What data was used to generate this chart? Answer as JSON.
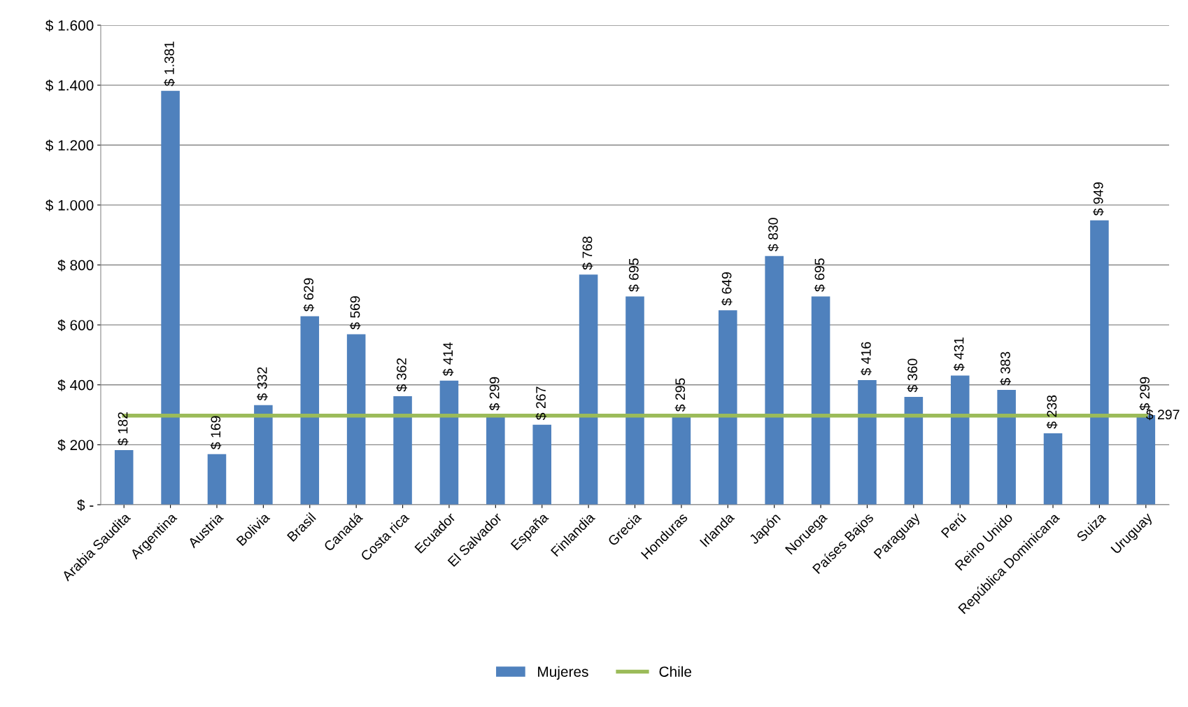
{
  "chart_data": {
    "type": "bar",
    "categories": [
      "Arabia Saudita",
      "Argentina",
      "Austria",
      "Bolivia",
      "Brasil",
      "Canadá",
      "Costa rica",
      "Ecuador",
      "El Salvador",
      "España",
      "Finlandia",
      "Grecia",
      "Honduras",
      "Irlanda",
      "Japón",
      "Noruega",
      "Países Bajos",
      "Paraguay",
      "Perú",
      "Reino Unido",
      "República Dominicana",
      "Suiza",
      "Uruguay"
    ],
    "series": [
      {
        "name": "Mujeres",
        "color": "#4f81bd",
        "values": [
          182,
          1381,
          169,
          332,
          629,
          569,
          362,
          414,
          299,
          267,
          768,
          695,
          295,
          649,
          830,
          695,
          416,
          360,
          431,
          383,
          238,
          949,
          299
        ],
        "value_labels": [
          "$ 182",
          "$ 1.381",
          "$ 169",
          "$ 332",
          "$ 629",
          "$ 569",
          "$ 362",
          "$ 414",
          "$ 299",
          "$ 267",
          "$ 768",
          "$ 695",
          "$ 295",
          "$ 649",
          "$ 830",
          "$ 695",
          "$ 416",
          "$ 360",
          "$ 431",
          "$ 383",
          "$ 238",
          "$ 949",
          "$ 299"
        ]
      },
      {
        "name": "Chile",
        "type": "line",
        "color": "#9bbb59",
        "values": [
          297,
          297,
          297,
          297,
          297,
          297,
          297,
          297,
          297,
          297,
          297,
          297,
          297,
          297,
          297,
          297,
          297,
          297,
          297,
          297,
          297,
          297,
          297
        ],
        "value_labels": [
          null,
          null,
          null,
          null,
          null,
          null,
          null,
          null,
          null,
          null,
          null,
          null,
          null,
          null,
          null,
          null,
          null,
          null,
          null,
          null,
          null,
          null,
          "$ 297"
        ]
      }
    ],
    "ylim": [
      0,
      1600
    ],
    "yticks": [
      {
        "value": 0,
        "label": "$ -"
      },
      {
        "value": 200,
        "label": "$ 200"
      },
      {
        "value": 400,
        "label": "$ 400"
      },
      {
        "value": 600,
        "label": "$ 600"
      },
      {
        "value": 800,
        "label": "$ 800"
      },
      {
        "value": 1000,
        "label": "$ 1.000"
      },
      {
        "value": 1200,
        "label": "$ 1.200"
      },
      {
        "value": 1400,
        "label": "$ 1.400"
      },
      {
        "value": 1600,
        "label": "$ 1.600"
      }
    ],
    "grid": "y",
    "legend": "bottom",
    "marker": "none",
    "line_style": "solid"
  }
}
